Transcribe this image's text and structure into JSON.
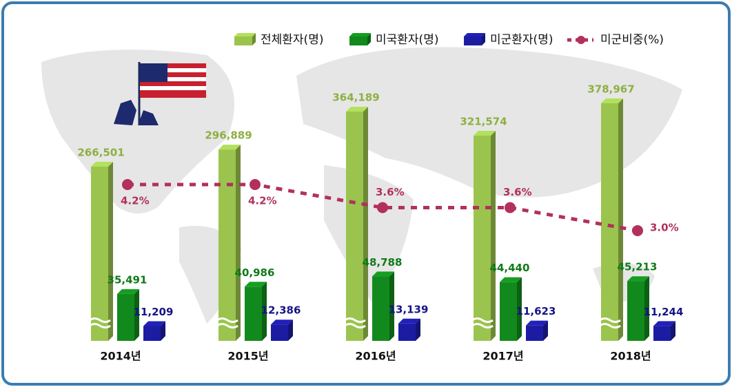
{
  "chart_data": {
    "type": "bar",
    "categories": [
      "2014년",
      "2015년",
      "2016년",
      "2017년",
      "2018년"
    ],
    "series": [
      {
        "name": "전체환자(명)",
        "color": "#9bc44e",
        "values": [
          266501,
          296889,
          364189,
          321574,
          378967
        ],
        "value_labels": [
          "266,501",
          "296,889",
          "364,189",
          "321,574",
          "378,967"
        ]
      },
      {
        "name": "미국환자(명)",
        "color": "#12891c",
        "values": [
          35491,
          40986,
          48788,
          44440,
          45213
        ],
        "value_labels": [
          "35,491",
          "40,986",
          "48,788",
          "44,440",
          "45,213"
        ]
      },
      {
        "name": "미군환자(명)",
        "color": "#1c1ca3",
        "values": [
          11209,
          12386,
          13139,
          11623,
          11244
        ],
        "value_labels": [
          "11,209",
          "12,386",
          "13,139",
          "11,623",
          "11,244"
        ]
      },
      {
        "name": "미군비중(%)",
        "type": "line",
        "color": "#b3305c",
        "values": [
          4.2,
          4.2,
          3.6,
          3.6,
          3.0
        ],
        "value_labels": [
          "4.2%",
          "4.2%",
          "3.6%",
          "3.6%",
          "3.0%"
        ]
      }
    ]
  }
}
